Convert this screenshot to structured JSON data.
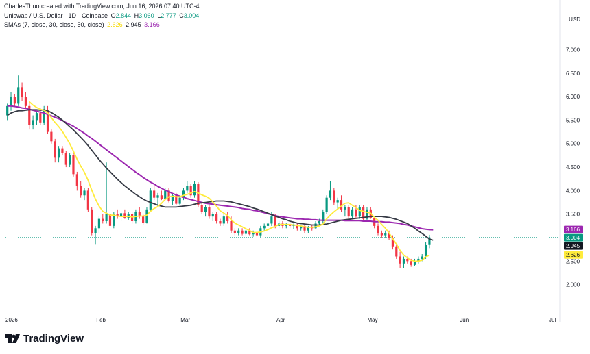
{
  "header": {
    "author_line": "CharlesThuo created with TradingView.com, Jun 16, 2026 07:40 UTC-4",
    "symbol": "Uniswap / U.S. Dollar · 1D · Coinbase",
    "o_label": "O",
    "o": "2.844",
    "h_label": "H",
    "h": "3.060",
    "l_label": "L",
    "l": "2.777",
    "c_label": "C",
    "c": "3.004",
    "sma_label": "SMAs (7, close, 30, close, 50, close)",
    "sma7": "2.626",
    "sma30": "2.945",
    "sma50": "3.166"
  },
  "currency": "USD",
  "brand": "TradingView",
  "colors": {
    "up": "#089981",
    "down": "#f23645",
    "sma7": "#ffeb3b",
    "sma30": "#363a45",
    "sma50": "#9c27b0",
    "price_line": "#089981"
  },
  "chart_data": {
    "type": "candlestick",
    "x_ticks": [
      "2026",
      "Feb",
      "Mar",
      "Apr",
      "May",
      "Jun",
      "Jul"
    ],
    "y_ticks": [
      "7.000",
      "6.500",
      "6.000",
      "5.500",
      "5.000",
      "4.500",
      "4.000",
      "3.500",
      "3.000",
      "2.500",
      "2.000"
    ],
    "ylim": [
      1.5,
      7.4
    ],
    "badges": [
      {
        "value": 3.166,
        "text": "3.166",
        "color": "#9c27b0",
        "text_color": "#ffffff"
      },
      {
        "value": 3.004,
        "text": "3.004",
        "color": "#089981",
        "text_color": "#ffffff"
      },
      {
        "value": 2.945,
        "text": "2.945",
        "color": "#131722",
        "text_color": "#ffffff"
      },
      {
        "value": 2.626,
        "text": "2.626",
        "color": "#ffeb3b",
        "text_color": "#131722"
      }
    ],
    "ohlc": [
      [
        5.6,
        5.85,
        5.5,
        5.8
      ],
      [
        5.8,
        6.1,
        5.7,
        6.0
      ],
      [
        6.0,
        6.05,
        5.8,
        5.85
      ],
      [
        5.85,
        6.45,
        5.8,
        6.2
      ],
      [
        6.2,
        6.3,
        5.9,
        6.0
      ],
      [
        6.0,
        6.1,
        5.75,
        5.8
      ],
      [
        5.8,
        5.9,
        5.3,
        5.4
      ],
      [
        5.4,
        5.6,
        5.3,
        5.5
      ],
      [
        5.5,
        5.7,
        5.4,
        5.65
      ],
      [
        5.65,
        5.75,
        5.4,
        5.45
      ],
      [
        5.45,
        5.8,
        5.4,
        5.7
      ],
      [
        5.7,
        5.8,
        5.2,
        5.25
      ],
      [
        5.25,
        5.3,
        5.0,
        5.05
      ],
      [
        5.05,
        5.1,
        4.6,
        4.7
      ],
      [
        4.7,
        4.95,
        4.6,
        4.9
      ],
      [
        4.9,
        4.95,
        4.75,
        4.8
      ],
      [
        4.8,
        4.85,
        4.5,
        4.55
      ],
      [
        4.55,
        4.8,
        4.5,
        4.75
      ],
      [
        4.75,
        4.8,
        4.3,
        4.35
      ],
      [
        4.35,
        4.4,
        4.0,
        4.1
      ],
      [
        4.1,
        4.2,
        3.85,
        3.9
      ],
      [
        3.9,
        4.05,
        3.8,
        4.0
      ],
      [
        4.0,
        4.05,
        3.55,
        3.6
      ],
      [
        3.6,
        3.65,
        3.05,
        3.1
      ],
      [
        3.1,
        3.25,
        2.85,
        3.2
      ],
      [
        3.2,
        3.45,
        3.1,
        3.4
      ],
      [
        3.4,
        3.5,
        3.3,
        3.35
      ],
      [
        3.35,
        4.6,
        3.3,
        3.5
      ],
      [
        3.5,
        3.55,
        3.2,
        3.25
      ],
      [
        3.25,
        3.55,
        3.2,
        3.5
      ],
      [
        3.5,
        3.6,
        3.4,
        3.45
      ],
      [
        3.45,
        3.55,
        3.35,
        3.52
      ],
      [
        3.52,
        3.6,
        3.4,
        3.42
      ],
      [
        3.42,
        3.55,
        3.38,
        3.5
      ],
      [
        3.5,
        3.55,
        3.3,
        3.35
      ],
      [
        3.35,
        3.6,
        3.3,
        3.55
      ],
      [
        3.55,
        3.65,
        3.4,
        3.45
      ],
      [
        3.45,
        3.5,
        3.28,
        3.32
      ],
      [
        3.32,
        3.65,
        3.3,
        3.6
      ],
      [
        3.6,
        4.05,
        3.55,
        4.0
      ],
      [
        4.0,
        4.1,
        3.8,
        3.85
      ],
      [
        3.85,
        3.95,
        3.7,
        3.9
      ],
      [
        3.9,
        4.0,
        3.8,
        3.82
      ],
      [
        3.82,
        4.05,
        3.8,
        4.0
      ],
      [
        4.0,
        4.05,
        3.75,
        3.78
      ],
      [
        3.78,
        3.95,
        3.7,
        3.9
      ],
      [
        3.9,
        3.95,
        3.7,
        3.72
      ],
      [
        3.72,
        3.9,
        3.7,
        3.85
      ],
      [
        3.85,
        4.05,
        3.8,
        4.0
      ],
      [
        4.0,
        4.2,
        3.95,
        4.1
      ],
      [
        4.1,
        4.15,
        3.85,
        3.9
      ],
      [
        3.9,
        4.2,
        3.85,
        4.15
      ],
      [
        4.15,
        4.18,
        3.65,
        3.7
      ],
      [
        3.7,
        3.75,
        3.5,
        3.55
      ],
      [
        3.55,
        3.7,
        3.45,
        3.65
      ],
      [
        3.65,
        3.7,
        3.4,
        3.45
      ],
      [
        3.45,
        3.55,
        3.35,
        3.5
      ],
      [
        3.5,
        3.55,
        3.3,
        3.35
      ],
      [
        3.35,
        3.4,
        3.25,
        3.3
      ],
      [
        3.3,
        3.5,
        3.25,
        3.45
      ],
      [
        3.45,
        3.55,
        3.3,
        3.35
      ],
      [
        3.35,
        3.45,
        3.1,
        3.15
      ],
      [
        3.15,
        3.2,
        3.05,
        3.1
      ],
      [
        3.1,
        3.2,
        3.05,
        3.15
      ],
      [
        3.15,
        3.2,
        3.05,
        3.08
      ],
      [
        3.08,
        3.2,
        3.05,
        3.15
      ],
      [
        3.15,
        3.2,
        3.05,
        3.07
      ],
      [
        3.07,
        3.15,
        3.02,
        3.1
      ],
      [
        3.1,
        3.15,
        3.0,
        3.05
      ],
      [
        3.05,
        3.25,
        3.0,
        3.2
      ],
      [
        3.2,
        3.3,
        3.15,
        3.25
      ],
      [
        3.25,
        3.35,
        3.2,
        3.3
      ],
      [
        3.3,
        3.55,
        3.25,
        3.45
      ],
      [
        3.45,
        3.5,
        3.2,
        3.25
      ],
      [
        3.25,
        3.35,
        3.2,
        3.3
      ],
      [
        3.3,
        3.35,
        3.2,
        3.25
      ],
      [
        3.25,
        3.32,
        3.2,
        3.28
      ],
      [
        3.28,
        3.32,
        3.2,
        3.25
      ],
      [
        3.25,
        3.3,
        3.18,
        3.28
      ],
      [
        3.28,
        3.32,
        3.15,
        3.2
      ],
      [
        3.2,
        3.28,
        3.15,
        3.25
      ],
      [
        3.25,
        3.3,
        3.1,
        3.15
      ],
      [
        3.15,
        3.25,
        3.1,
        3.22
      ],
      [
        3.22,
        3.28,
        3.15,
        3.2
      ],
      [
        3.2,
        3.35,
        3.18,
        3.3
      ],
      [
        3.3,
        3.4,
        3.25,
        3.35
      ],
      [
        3.35,
        3.6,
        3.3,
        3.55
      ],
      [
        3.55,
        3.9,
        3.5,
        3.85
      ],
      [
        3.85,
        4.2,
        3.8,
        4.0
      ],
      [
        4.0,
        4.05,
        3.7,
        3.75
      ],
      [
        3.75,
        3.85,
        3.6,
        3.8
      ],
      [
        3.8,
        3.9,
        3.55,
        3.6
      ],
      [
        3.6,
        3.7,
        3.45,
        3.65
      ],
      [
        3.65,
        3.7,
        3.4,
        3.45
      ],
      [
        3.45,
        3.65,
        3.4,
        3.6
      ],
      [
        3.6,
        3.7,
        3.4,
        3.45
      ],
      [
        3.45,
        3.7,
        3.4,
        3.65
      ],
      [
        3.65,
        3.7,
        3.35,
        3.4
      ],
      [
        3.4,
        3.65,
        3.35,
        3.6
      ],
      [
        3.6,
        3.65,
        3.4,
        3.42
      ],
      [
        3.42,
        3.45,
        3.2,
        3.25
      ],
      [
        3.25,
        3.3,
        3.05,
        3.1
      ],
      [
        3.1,
        3.15,
        3.0,
        3.05
      ],
      [
        3.05,
        3.15,
        3.0,
        3.1
      ],
      [
        3.1,
        3.15,
        2.95,
        3.0
      ],
      [
        3.0,
        3.05,
        2.75,
        2.8
      ],
      [
        2.8,
        2.85,
        2.55,
        2.6
      ],
      [
        2.6,
        2.7,
        2.35,
        2.45
      ],
      [
        2.45,
        2.6,
        2.35,
        2.55
      ],
      [
        2.55,
        2.6,
        2.45,
        2.5
      ],
      [
        2.5,
        2.55,
        2.38,
        2.42
      ],
      [
        2.42,
        2.55,
        2.4,
        2.5
      ],
      [
        2.5,
        2.6,
        2.45,
        2.55
      ],
      [
        2.55,
        2.65,
        2.5,
        2.6
      ],
      [
        2.6,
        2.9,
        2.55,
        2.84
      ],
      [
        2.844,
        3.06,
        2.777,
        3.004
      ]
    ],
    "sma7": [
      null,
      null,
      null,
      null,
      null,
      null,
      5.89,
      5.82,
      5.77,
      5.73,
      5.71,
      5.65,
      5.55,
      5.45,
      5.36,
      5.26,
      5.13,
      5.0,
      4.84,
      4.67,
      4.52,
      4.39,
      4.22,
      4.01,
      3.82,
      3.67,
      3.56,
      3.52,
      3.48,
      3.48,
      3.46,
      3.45,
      3.45,
      3.45,
      3.44,
      3.45,
      3.46,
      3.46,
      3.48,
      3.56,
      3.62,
      3.66,
      3.73,
      3.81,
      3.87,
      3.88,
      3.87,
      3.87,
      3.9,
      3.92,
      3.95,
      3.98,
      3.95,
      3.91,
      3.88,
      3.84,
      3.76,
      3.67,
      3.57,
      3.52,
      3.47,
      3.38,
      3.31,
      3.27,
      3.23,
      3.19,
      3.15,
      3.11,
      3.11,
      3.12,
      3.14,
      3.17,
      3.21,
      3.24,
      3.28,
      3.28,
      3.28,
      3.28,
      3.27,
      3.26,
      3.25,
      3.23,
      3.22,
      3.22,
      3.23,
      3.25,
      3.29,
      3.4,
      3.48,
      3.55,
      3.61,
      3.67,
      3.73,
      3.74,
      3.69,
      3.64,
      3.58,
      3.56,
      3.54,
      3.52,
      3.43,
      3.37,
      3.28,
      3.2,
      3.1,
      2.98,
      2.86,
      2.73,
      2.63,
      2.57,
      2.52,
      2.5,
      2.5,
      2.52,
      2.59,
      2.63
    ],
    "sma30": [
      5.6,
      5.65,
      5.68,
      5.7,
      5.7,
      5.71,
      5.72,
      5.72,
      5.72,
      5.71,
      5.72,
      5.7,
      5.66,
      5.61,
      5.56,
      5.5,
      5.43,
      5.36,
      5.29,
      5.21,
      5.13,
      5.05,
      4.96,
      4.86,
      4.76,
      4.66,
      4.57,
      4.48,
      4.4,
      4.32,
      4.24,
      4.17,
      4.1,
      4.04,
      3.98,
      3.92,
      3.87,
      3.82,
      3.78,
      3.75,
      3.72,
      3.69,
      3.67,
      3.65,
      3.65,
      3.65,
      3.65,
      3.66,
      3.67,
      3.68,
      3.69,
      3.71,
      3.73,
      3.74,
      3.75,
      3.76,
      3.77,
      3.78,
      3.78,
      3.78,
      3.77,
      3.76,
      3.74,
      3.72,
      3.7,
      3.68,
      3.66,
      3.63,
      3.61,
      3.58,
      3.55,
      3.52,
      3.49,
      3.46,
      3.43,
      3.4,
      3.38,
      3.35,
      3.33,
      3.31,
      3.3,
      3.29,
      3.28,
      3.27,
      3.27,
      3.27,
      3.28,
      3.29,
      3.31,
      3.33,
      3.35,
      3.37,
      3.38,
      3.39,
      3.4,
      3.41,
      3.42,
      3.43,
      3.44,
      3.45,
      3.45,
      3.45,
      3.45,
      3.44,
      3.43,
      3.41,
      3.39,
      3.36,
      3.33,
      3.3,
      3.25,
      3.2,
      3.14,
      3.09,
      3.03,
      2.97,
      2.945
    ],
    "sma50": [
      5.8,
      5.8,
      5.79,
      5.78,
      5.76,
      5.75,
      5.73,
      5.71,
      5.69,
      5.67,
      5.65,
      5.62,
      5.59,
      5.56,
      5.53,
      5.49,
      5.45,
      5.41,
      5.37,
      5.32,
      5.27,
      5.22,
      5.16,
      5.11,
      5.05,
      4.99,
      4.93,
      4.87,
      4.81,
      4.75,
      4.69,
      4.63,
      4.57,
      4.51,
      4.45,
      4.39,
      4.34,
      4.28,
      4.23,
      4.18,
      4.14,
      4.09,
      4.05,
      4.01,
      3.98,
      3.94,
      3.91,
      3.88,
      3.86,
      3.83,
      3.81,
      3.79,
      3.77,
      3.75,
      3.73,
      3.72,
      3.71,
      3.7,
      3.69,
      3.68,
      3.67,
      3.66,
      3.65,
      3.64,
      3.62,
      3.61,
      3.6,
      3.58,
      3.57,
      3.55,
      3.53,
      3.51,
      3.49,
      3.47,
      3.45,
      3.44,
      3.43,
      3.42,
      3.41,
      3.4,
      3.4,
      3.39,
      3.39,
      3.38,
      3.38,
      3.37,
      3.37,
      3.37,
      3.37,
      3.37,
      3.37,
      3.37,
      3.36,
      3.36,
      3.36,
      3.36,
      3.36,
      3.35,
      3.35,
      3.35,
      3.34,
      3.34,
      3.34,
      3.33,
      3.33,
      3.32,
      3.31,
      3.3,
      3.28,
      3.27,
      3.25,
      3.23,
      3.21,
      3.19,
      3.18,
      3.17,
      3.166
    ],
    "last_price": 3.004
  }
}
